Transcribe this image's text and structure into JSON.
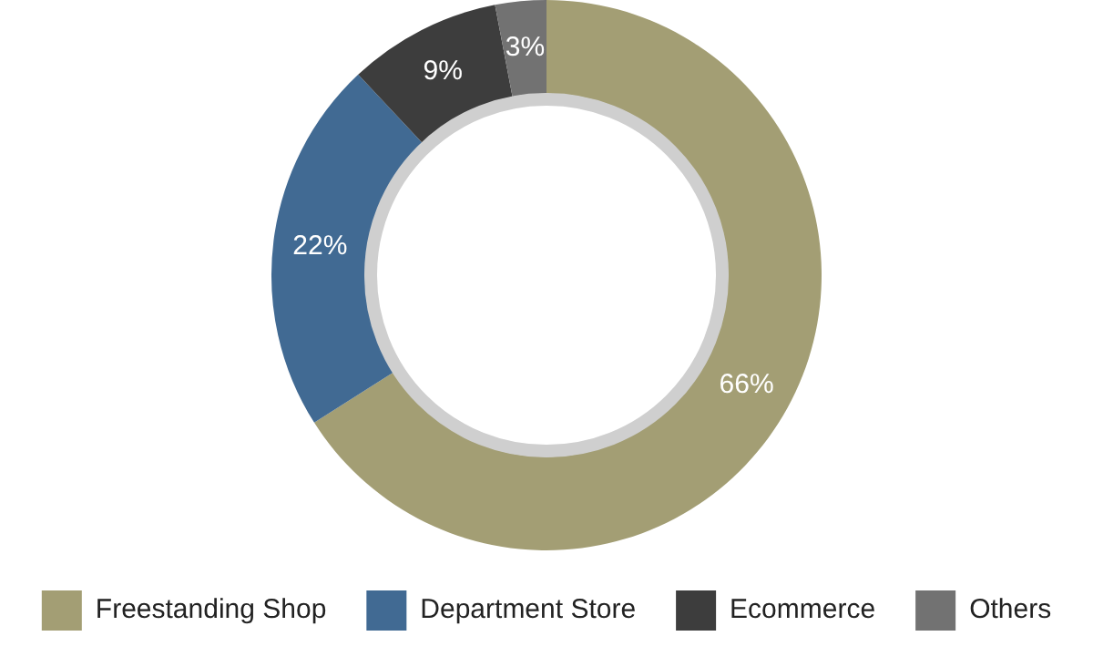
{
  "chart_data": {
    "type": "donut",
    "categories": [
      "Freestanding Shop",
      "Department Store",
      "Ecommerce",
      "Others"
    ],
    "values": [
      66,
      22,
      9,
      3
    ],
    "colors": [
      "#a39e74",
      "#416a93",
      "#3d3d3d",
      "#727272"
    ],
    "value_labels": [
      "66%",
      "22%",
      "9%",
      "3%"
    ],
    "legend": "bottom"
  }
}
